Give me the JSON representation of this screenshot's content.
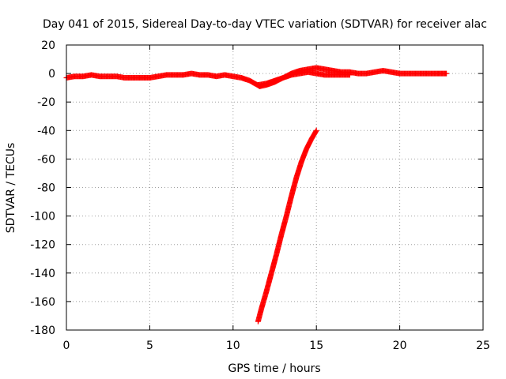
{
  "chart_data": {
    "type": "scatter",
    "title": "Day 041 of 2015, Sidereal Day-to-day VTEC variation (SDTVAR) for receiver alac",
    "xlabel": "GPS time / hours",
    "ylabel": "SDTVAR / TECUs",
    "xlim": [
      0,
      25
    ],
    "ylim": [
      -180,
      20
    ],
    "x_ticks": [
      "0",
      "5",
      "10",
      "15",
      "20",
      "25"
    ],
    "y_ticks": [
      "20",
      "0",
      "-20",
      "-40",
      "-60",
      "-80",
      "-100",
      "-120",
      "-140",
      "-160",
      "-180"
    ],
    "grid": true,
    "marker": "plus",
    "color": "#ff0000",
    "series": [
      {
        "x": [
          0.0,
          0.5,
          1.0,
          1.5,
          2.0,
          2.5,
          3.0,
          3.5,
          4.0,
          4.5,
          5.0,
          5.5,
          6.0,
          6.5,
          7.0,
          7.5,
          8.0,
          8.5,
          9.0,
          9.5,
          10.0,
          10.5,
          11.0,
          11.3,
          11.6,
          12.0,
          12.5,
          13.0,
          13.5,
          14.0,
          14.5,
          15.0,
          15.5,
          16.0,
          16.5,
          17.0,
          17.5,
          18.0,
          18.5,
          19.0,
          19.5,
          20.0,
          20.5,
          21.0,
          21.5,
          22.0,
          22.8
        ],
        "y": [
          -3,
          -2,
          -2,
          -1,
          -2,
          -2,
          -2,
          -3,
          -3,
          -3,
          -3,
          -2,
          -1,
          -1,
          -1,
          0,
          -1,
          -1,
          -2,
          -1,
          -2,
          -3,
          -5,
          -7,
          -9,
          -8,
          -6,
          -3,
          0,
          2,
          3,
          4,
          3,
          2,
          1,
          1,
          0,
          0,
          1,
          2,
          1,
          0,
          0,
          0,
          0,
          0,
          0
        ]
      },
      {
        "x": [
          11.5,
          12.0,
          12.5,
          13.0,
          13.5,
          14.0,
          14.5,
          15.0,
          15.5,
          16.0,
          16.5,
          17.0
        ],
        "y": [
          -8,
          -7,
          -5,
          -3,
          -1,
          0,
          1,
          0,
          -1,
          -1,
          -1,
          -1
        ]
      },
      {
        "x": [
          11.5,
          11.7,
          12.0,
          12.3,
          12.6,
          12.9,
          13.2,
          13.5,
          13.8,
          14.1,
          14.4,
          14.7,
          15.0
        ],
        "y": [
          -174,
          -165,
          -153,
          -140,
          -127,
          -113,
          -100,
          -86,
          -73,
          -62,
          -53,
          -46,
          -40
        ]
      }
    ]
  }
}
